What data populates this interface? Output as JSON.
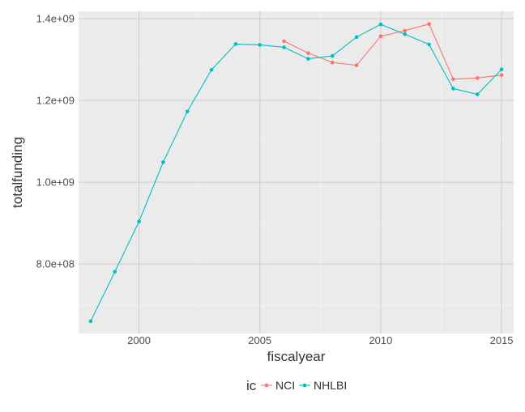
{
  "chart_data": {
    "type": "line",
    "xlabel": "fiscalyear",
    "ylabel": "totalfunding",
    "x_ticks": [
      2000,
      2005,
      2010,
      2015
    ],
    "x_tick_labels": [
      "2000",
      "2005",
      "2010",
      "2015"
    ],
    "y_ticks": [
      800000000,
      1000000000,
      1200000000,
      1400000000
    ],
    "y_tick_labels": [
      "8.0e+08",
      "1.0e+09",
      "1.2e+09",
      "1.4e+09"
    ],
    "xlim": [
      1997.5,
      2015.5
    ],
    "ylim": [
      630000000,
      1418000000
    ],
    "grid": true,
    "legend": {
      "title": "ic",
      "position": "bottom"
    },
    "series": [
      {
        "name": "NCI",
        "color": "#F8766D",
        "x": [
          2006,
          2007,
          2008,
          2009,
          2010,
          2011,
          2012,
          2013,
          2014,
          2015
        ],
        "y": [
          1345000000,
          1316000000,
          1293000000,
          1286000000,
          1357000000,
          1371000000,
          1387000000,
          1252000000,
          1255000000,
          1262000000
        ]
      },
      {
        "name": "NHLBI",
        "color": "#00BFC4",
        "x": [
          1998,
          1999,
          2000,
          2001,
          2002,
          2003,
          2004,
          2005,
          2006,
          2007,
          2008,
          2009,
          2010,
          2011,
          2012,
          2013,
          2014,
          2015
        ],
        "y": [
          660000000,
          781000000,
          904000000,
          1049000000,
          1173000000,
          1275000000,
          1338000000,
          1336000000,
          1330000000,
          1302000000,
          1309000000,
          1355000000,
          1386000000,
          1362000000,
          1337000000,
          1229000000,
          1215000000,
          1276000000
        ]
      }
    ]
  }
}
